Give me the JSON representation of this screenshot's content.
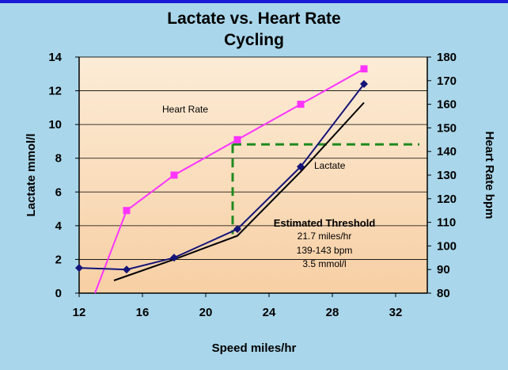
{
  "chart_data": {
    "type": "line",
    "title": "Lactate vs. Heart Rate",
    "subtitle": "Cycling",
    "xlabel": "Speed miles/hr",
    "ylabel_left": "Lactate mmol/l",
    "ylabel_right": "Heart Rate bpm",
    "xlim": [
      12,
      34
    ],
    "ylim_left": [
      0,
      14
    ],
    "ylim_right": [
      80,
      180
    ],
    "x_ticks": [
      12,
      16,
      20,
      24,
      28,
      32
    ],
    "y_left_ticks": [
      0,
      2,
      4,
      6,
      8,
      10,
      12,
      14
    ],
    "y_right_ticks": [
      80,
      90,
      100,
      110,
      120,
      130,
      140,
      150,
      160,
      170,
      180
    ],
    "grid": "horizontal",
    "series": [
      {
        "name": "Heart Rate",
        "axis": "right",
        "color": "#ff33ff",
        "marker": "square",
        "x": [
          13,
          15,
          18,
          22,
          26,
          30
        ],
        "y": [
          80,
          115,
          130,
          145,
          160,
          175
        ]
      },
      {
        "name": "Lactate",
        "axis": "left",
        "color": "#141478",
        "marker": "diamond",
        "x": [
          12,
          15,
          18,
          22,
          26,
          30
        ],
        "y": [
          1.5,
          1.4,
          2.1,
          3.8,
          7.5,
          12.4
        ]
      }
    ],
    "trendline": {
      "axis": "left",
      "color": "#000000",
      "x": [
        14.2,
        18,
        22,
        26,
        30
      ],
      "y": [
        0.75,
        2.0,
        3.4,
        7.2,
        11.3
      ]
    },
    "threshold": {
      "color": "#1f8a1f",
      "x": 21.7,
      "heart_rate": 143,
      "lactate": 3.5
    },
    "annotations": {
      "heart_rate_label": "Heart Rate",
      "lactate_label": "Lactate",
      "threshold_lines": [
        "Estimated Threshold",
        "21.7 miles/hr",
        "139-143 bpm",
        "3.5 mmol/l"
      ]
    }
  }
}
